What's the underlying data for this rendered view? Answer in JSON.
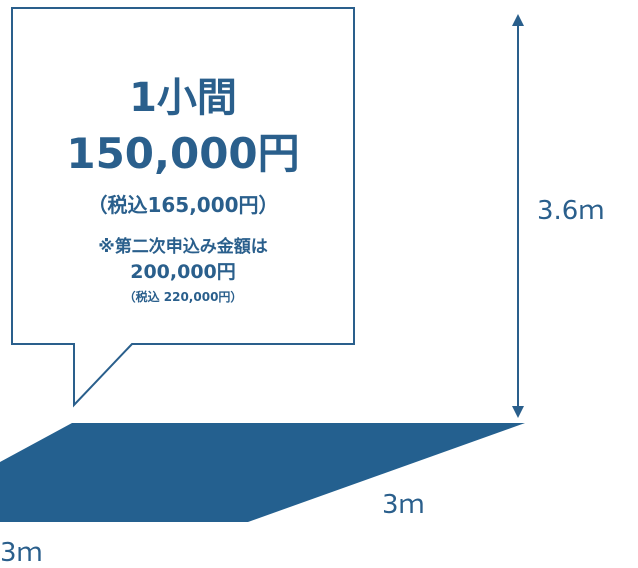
{
  "booth": {
    "title": "1小間",
    "price": "150,000円",
    "price_tax_included": "（税込165,000円）",
    "second_application_note": "※第二次申込み金額は",
    "second_price": "200,000円",
    "second_price_tax_included": "（税込 220,000円）"
  },
  "dimensions": {
    "height": "3.6ｍ",
    "depth": "3ｍ",
    "width": "3ｍ"
  },
  "colors": {
    "primary": "#2a5f8c",
    "floor": "#24608f",
    "background": "#ffffff"
  }
}
